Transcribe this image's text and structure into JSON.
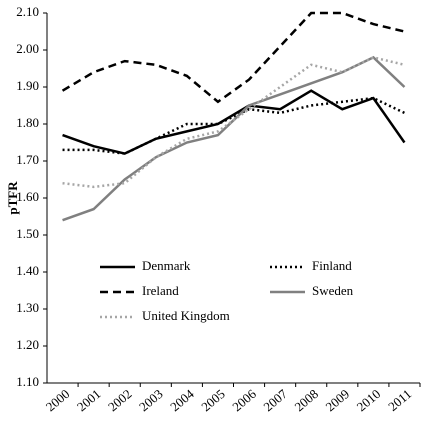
{
  "chart_data": {
    "type": "line",
    "y_label": "pTFR",
    "categories": [
      "2000",
      "2001",
      "2002",
      "2003",
      "2004",
      "2005",
      "2006",
      "2007",
      "2008",
      "2009",
      "2010",
      "2011"
    ],
    "series": [
      {
        "name": "Denmark",
        "color": "#000000",
        "dash": "solid",
        "values": [
          1.77,
          1.74,
          1.72,
          1.76,
          1.78,
          1.8,
          1.85,
          1.84,
          1.89,
          1.84,
          1.87,
          1.75
        ]
      },
      {
        "name": "Finland",
        "color": "#000000",
        "dash": "dotted",
        "values": [
          1.73,
          1.73,
          1.72,
          1.76,
          1.8,
          1.8,
          1.84,
          1.83,
          1.85,
          1.86,
          1.87,
          1.83
        ]
      },
      {
        "name": "Ireland",
        "color": "#000000",
        "dash": "dashed",
        "values": [
          1.89,
          1.94,
          1.97,
          1.96,
          1.93,
          1.86,
          1.92,
          2.01,
          2.1,
          2.1,
          2.07,
          2.05
        ]
      },
      {
        "name": "Sweden",
        "color": "#808080",
        "dash": "solid",
        "values": [
          1.54,
          1.57,
          1.65,
          1.71,
          1.75,
          1.77,
          1.85,
          1.88,
          1.91,
          1.94,
          1.98,
          1.9
        ]
      },
      {
        "name": "United Kingdom",
        "color": "#a6a6a6",
        "dash": "dotted",
        "values": [
          1.64,
          1.63,
          1.64,
          1.71,
          1.76,
          1.78,
          1.84,
          1.9,
          1.96,
          1.94,
          1.98,
          1.96
        ]
      }
    ],
    "ylim": [
      1.1,
      2.1
    ],
    "yticks": [
      {
        "value": 1.1,
        "label": "1.10"
      },
      {
        "value": 1.2,
        "label": "1.20"
      },
      {
        "value": 1.3,
        "label": "1.30"
      },
      {
        "value": 1.4,
        "label": "1.40"
      },
      {
        "value": 1.5,
        "label": "1.50"
      },
      {
        "value": 1.6,
        "label": "1.60"
      },
      {
        "value": 1.7,
        "label": "1.70"
      },
      {
        "value": 1.8,
        "label": "1.80"
      },
      {
        "value": 1.9,
        "label": "1.90"
      },
      {
        "value": 2.0,
        "label": "2.00"
      },
      {
        "value": 2.1,
        "label": "2.10"
      }
    ],
    "grid": false,
    "legend_position": "lower-left"
  }
}
